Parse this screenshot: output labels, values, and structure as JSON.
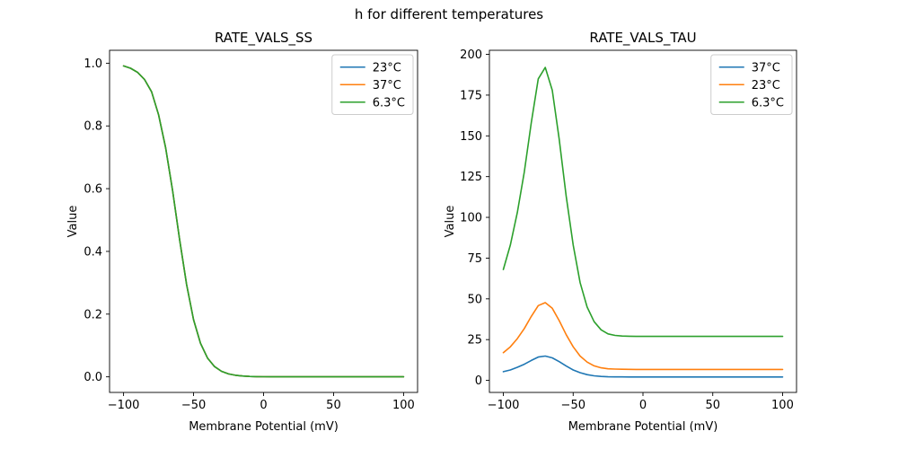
{
  "figure": {
    "suptitle": "h for different temperatures",
    "background_color": "#ffffff",
    "text_color": "#000000"
  },
  "palette": {
    "C0": "#1f77b4",
    "C1": "#ff7f0e",
    "C2": "#2ca02c"
  },
  "chart_data": [
    {
      "id": "ss",
      "type": "line",
      "title": "RATE_VALS_SS",
      "xlabel": "Membrane Potential (mV)",
      "ylabel": "Value",
      "xlim": [
        -110,
        110
      ],
      "ylim": [
        -0.0497,
        1.0412
      ],
      "xticks": [
        -100,
        -50,
        0,
        50,
        100
      ],
      "xtick_labels": [
        "−100",
        "−50",
        "0",
        "50",
        "100"
      ],
      "yticks": [
        0.0,
        0.2,
        0.4,
        0.6,
        0.8,
        1.0
      ],
      "ytick_labels": [
        "0.0",
        "0.2",
        "0.4",
        "0.6",
        "0.8",
        "1.0"
      ],
      "grid": false,
      "legend_position": "upper-right",
      "x": [
        -100,
        -95,
        -90,
        -85,
        -80,
        -75,
        -70,
        -65,
        -60,
        -55,
        -50,
        -45,
        -40,
        -35,
        -30,
        -25,
        -20,
        -15,
        -10,
        -5,
        0,
        5,
        10,
        15,
        20,
        25,
        30,
        35,
        40,
        45,
        50,
        55,
        60,
        65,
        70,
        75,
        80,
        85,
        90,
        95,
        100
      ],
      "series": [
        {
          "name": "23°C",
          "color": "C0",
          "values": [
            0.9915,
            0.9839,
            0.9707,
            0.9478,
            0.9089,
            0.8355,
            0.7311,
            0.5937,
            0.4378,
            0.2942,
            0.1824,
            0.1067,
            0.0601,
            0.0329,
            0.0177,
            0.0094,
            0.005,
            0.0026,
            0.0014,
            0.0007,
            0.0004,
            0.0002,
            0.0001,
            0.0001,
            0,
            0,
            0,
            0,
            0,
            0,
            0,
            0,
            0,
            0,
            0,
            0,
            0,
            0,
            0,
            0,
            0
          ]
        },
        {
          "name": "37°C",
          "color": "C1",
          "values": [
            0.9915,
            0.9839,
            0.9707,
            0.9478,
            0.9089,
            0.8355,
            0.7311,
            0.5937,
            0.4378,
            0.2942,
            0.1824,
            0.1067,
            0.0601,
            0.0329,
            0.0177,
            0.0094,
            0.005,
            0.0026,
            0.0014,
            0.0007,
            0.0004,
            0.0002,
            0.0001,
            0.0001,
            0,
            0,
            0,
            0,
            0,
            0,
            0,
            0,
            0,
            0,
            0,
            0,
            0,
            0,
            0,
            0,
            0
          ]
        },
        {
          "name": "6.3°C",
          "color": "C2",
          "values": [
            0.9915,
            0.9839,
            0.9707,
            0.9478,
            0.9089,
            0.8355,
            0.7311,
            0.5937,
            0.4378,
            0.2942,
            0.1824,
            0.1067,
            0.0601,
            0.0329,
            0.0177,
            0.0094,
            0.005,
            0.0026,
            0.0014,
            0.0007,
            0.0004,
            0.0002,
            0.0001,
            0.0001,
            0,
            0,
            0,
            0,
            0,
            0,
            0,
            0,
            0,
            0,
            0,
            0,
            0,
            0,
            0,
            0,
            0
          ]
        }
      ]
    },
    {
      "id": "tau",
      "type": "line",
      "title": "RATE_VALS_TAU",
      "xlabel": "Membrane Potential (mV)",
      "ylabel": "Value",
      "xlim": [
        -110,
        110
      ],
      "ylim": [
        -7.4,
        202.5
      ],
      "xticks": [
        -100,
        -50,
        0,
        50,
        100
      ],
      "xtick_labels": [
        "−100",
        "−50",
        "0",
        "50",
        "100"
      ],
      "yticks": [
        0,
        25,
        50,
        75,
        100,
        125,
        150,
        175,
        200
      ],
      "ytick_labels": [
        "0",
        "25",
        "50",
        "75",
        "100",
        "125",
        "150",
        "175",
        "200"
      ],
      "grid": false,
      "legend_position": "upper-right",
      "x": [
        -100,
        -95,
        -90,
        -85,
        -80,
        -75,
        -70,
        -65,
        -60,
        -55,
        -50,
        -45,
        -40,
        -35,
        -30,
        -25,
        -20,
        -15,
        -10,
        -5,
        0,
        5,
        10,
        15,
        20,
        25,
        30,
        35,
        40,
        45,
        50,
        55,
        60,
        65,
        70,
        75,
        80,
        85,
        90,
        95,
        100
      ],
      "series": [
        {
          "name": "37°C",
          "color": "C0",
          "values": [
            5.3,
            6.4,
            8.0,
            9.9,
            12.2,
            14.3,
            14.9,
            13.8,
            11.5,
            8.8,
            6.4,
            4.7,
            3.5,
            2.8,
            2.4,
            2.2,
            2.15,
            2.12,
            2.1,
            2.1,
            2.1,
            2.1,
            2.1,
            2.1,
            2.1,
            2.1,
            2.1,
            2.1,
            2.1,
            2.1,
            2.1,
            2.1,
            2.1,
            2.1,
            2.1,
            2.1,
            2.1,
            2.1,
            2.1,
            2.1,
            2.1
          ]
        },
        {
          "name": "23°C",
          "color": "C1",
          "values": [
            17.0,
            20.6,
            25.6,
            31.8,
            39.2,
            45.9,
            47.7,
            44.2,
            36.7,
            28.0,
            20.6,
            14.9,
            11.2,
            8.9,
            7.7,
            7.1,
            6.9,
            6.8,
            6.75,
            6.7,
            6.7,
            6.7,
            6.7,
            6.7,
            6.7,
            6.7,
            6.7,
            6.7,
            6.7,
            6.7,
            6.7,
            6.7,
            6.7,
            6.7,
            6.7,
            6.7,
            6.7,
            6.7,
            6.7,
            6.7,
            6.7
          ]
        },
        {
          "name": "6.3°C",
          "color": "C2",
          "values": [
            68,
            83,
            103,
            128,
            158,
            185,
            192,
            178,
            148,
            113,
            83,
            60,
            45,
            36,
            31,
            28.5,
            27.6,
            27.2,
            27.1,
            27,
            27,
            27,
            27,
            27,
            27,
            27,
            27,
            27,
            27,
            27,
            27,
            27,
            27,
            27,
            27,
            27,
            27,
            27,
            27,
            27,
            27
          ]
        }
      ]
    }
  ]
}
